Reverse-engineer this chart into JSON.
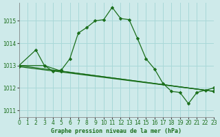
{
  "title": "Graphe pression niveau de la mer (hPa)",
  "background_color": "#ceeaea",
  "grid_color": "#a8d8d8",
  "line_color": "#1a6e1a",
  "xlim": [
    0,
    23
  ],
  "ylim": [
    1010.7,
    1015.8
  ],
  "yticks": [
    1011,
    1012,
    1013,
    1014,
    1015
  ],
  "xticks": [
    0,
    1,
    2,
    3,
    4,
    5,
    6,
    7,
    8,
    9,
    10,
    11,
    12,
    13,
    14,
    15,
    16,
    17,
    18,
    19,
    20,
    21,
    22,
    23
  ],
  "series1_x": [
    0,
    2,
    3,
    4,
    5,
    6,
    7,
    8,
    9,
    10,
    11,
    12,
    13,
    14,
    15,
    16,
    17,
    18,
    19,
    20,
    21,
    22,
    23
  ],
  "series1_y": [
    1013.0,
    1013.7,
    1013.0,
    1012.75,
    1012.8,
    1013.3,
    1014.45,
    1014.7,
    1015.0,
    1015.05,
    1015.6,
    1015.1,
    1015.05,
    1014.2,
    1013.3,
    1012.85,
    1012.2,
    1011.85,
    1011.8,
    1011.3,
    1011.8,
    1011.9,
    1012.0
  ],
  "series2_x": [
    0,
    3,
    5,
    23
  ],
  "series2_y": [
    1013.0,
    1013.0,
    1012.75,
    1011.85
  ],
  "series3_x": [
    0,
    5,
    23
  ],
  "series3_y": [
    1013.0,
    1012.75,
    1011.85
  ],
  "series4_x": [
    0,
    23
  ],
  "series4_y": [
    1012.95,
    1011.85
  ]
}
